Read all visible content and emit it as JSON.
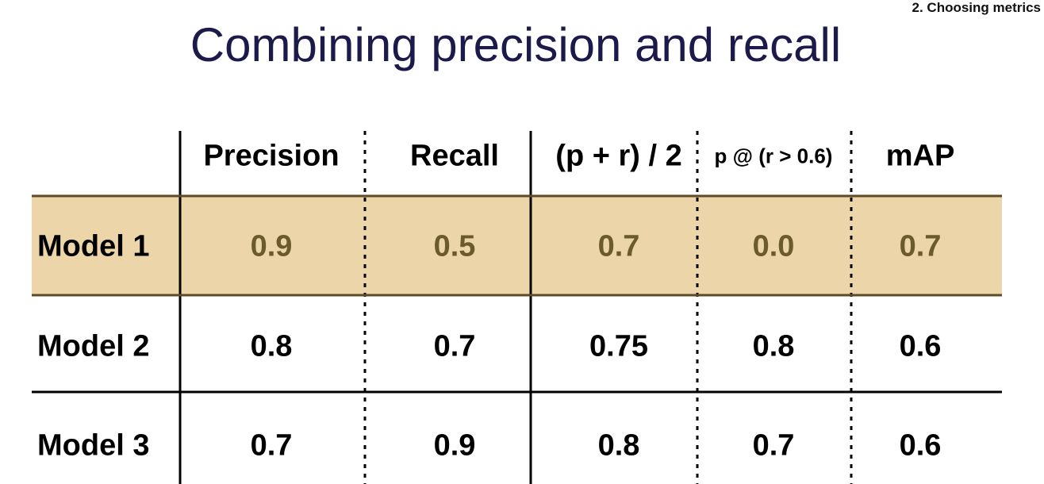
{
  "header": {
    "section": "2. Choosing metrics",
    "title": "Combining precision and recall"
  },
  "table": {
    "columns": [
      "Precision",
      "Recall",
      "(p + r) / 2",
      "p @ (r > 0.6)",
      "mAP"
    ],
    "rows": [
      {
        "label": "Model 1",
        "values": [
          "0.9",
          "0.5",
          "0.7",
          "0.0",
          "0.7"
        ]
      },
      {
        "label": "Model 2",
        "values": [
          "0.8",
          "0.7",
          "0.75",
          "0.8",
          "0.6"
        ]
      },
      {
        "label": "Model 3",
        "values": [
          "0.7",
          "0.9",
          "0.8",
          "0.7",
          "0.6"
        ]
      }
    ],
    "highlighted_row": 0
  }
}
